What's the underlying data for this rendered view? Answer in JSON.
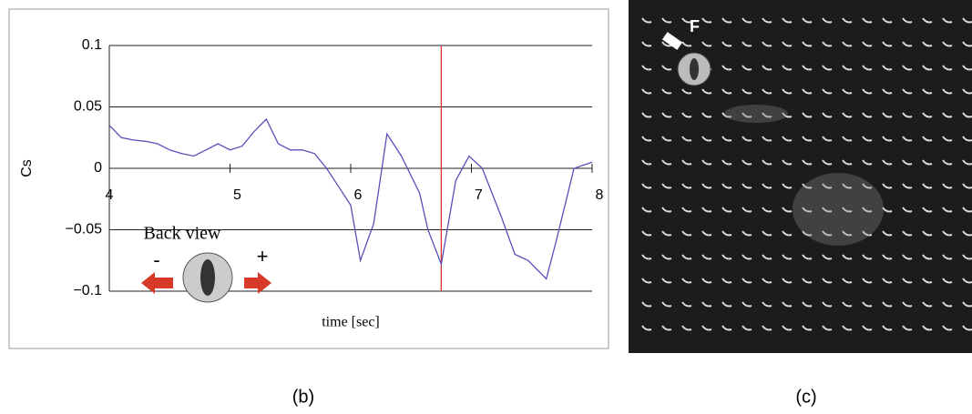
{
  "chart_data": {
    "type": "line",
    "x_label": "time [sec]",
    "y_label": "Cs",
    "x": [
      4,
      4.1,
      4.2,
      4.3,
      4.4,
      4.5,
      4.6,
      4.7,
      4.8,
      4.9,
      5,
      5.1,
      5.2,
      5.3,
      5.4,
      5.5,
      5.6,
      5.7,
      5.8,
      5.9,
      6,
      6.08,
      6.19,
      6.3,
      6.42,
      6.57,
      6.64,
      6.75,
      6.87,
      6.98,
      7.09,
      7.25,
      7.36,
      7.47,
      7.62,
      7.7,
      7.85,
      8
    ],
    "values": [
      0.035,
      0.025,
      0.023,
      0.022,
      0.02,
      0.015,
      0.012,
      0.01,
      0.015,
      0.02,
      0.015,
      0.018,
      0.03,
      0.04,
      0.02,
      0.015,
      0.015,
      0.012,
      0.0,
      -0.015,
      -0.03,
      -0.075,
      -0.045,
      0.028,
      0.01,
      -0.02,
      -0.05,
      -0.078,
      -0.01,
      0.01,
      0.0,
      -0.04,
      -0.07,
      -0.075,
      -0.09,
      -0.06,
      0.0,
      0.005
    ],
    "color": "#5a4fb8",
    "xlim": [
      4,
      8
    ],
    "ylim": [
      -0.1,
      0.1
    ],
    "xticks": [
      4,
      5,
      6,
      7,
      8
    ],
    "yticks": [
      0.1,
      0.05,
      0,
      {
        "value": -0.05,
        "label": "−0.05"
      },
      {
        "value": -0.1,
        "label": "−0.1"
      }
    ],
    "grid": true,
    "vline": {
      "x": 6.75,
      "color": "#e03030"
    },
    "inset": {
      "title": "Back view",
      "minus": "-",
      "plus": "+"
    }
  },
  "photo": {
    "label": "F"
  },
  "captions": [
    "(b)",
    "(c)"
  ]
}
